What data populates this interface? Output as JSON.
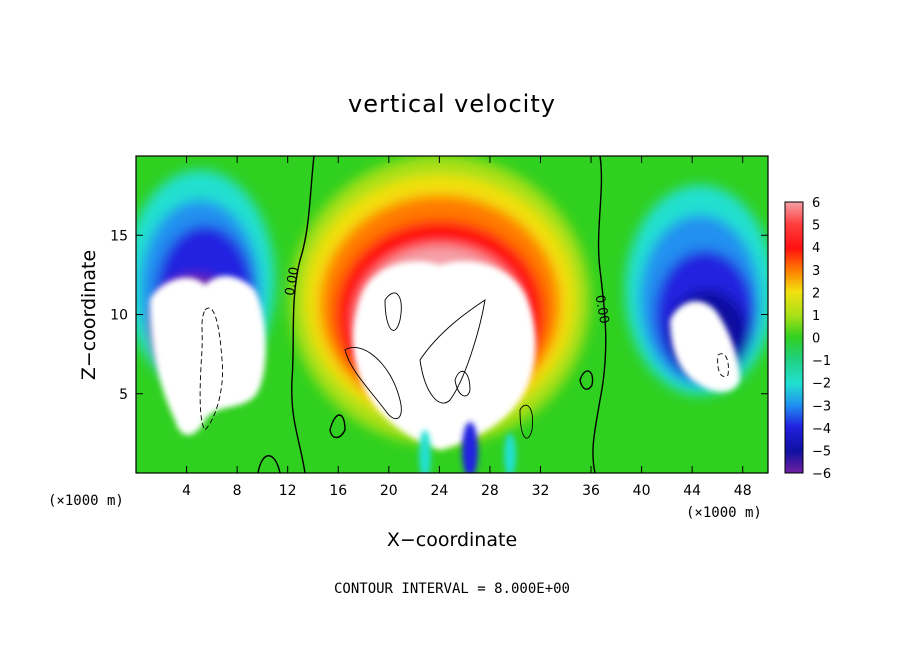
{
  "chart_data": {
    "type": "heatmap",
    "title": "vertical velocity",
    "xlabel": "X−coordinate",
    "ylabel": "Z−coordinate",
    "x_unit_label": "(×1000 m)",
    "x_unit_label_right": "(×1000 m)",
    "xlim": [
      0,
      50
    ],
    "ylim": [
      0,
      20
    ],
    "x_ticks": [
      4,
      8,
      12,
      16,
      20,
      24,
      28,
      32,
      36,
      40,
      44,
      48
    ],
    "x_tick_labels": [
      "4",
      "8",
      "12",
      "16",
      "20",
      "24",
      "28",
      "32",
      "36",
      "40",
      "44",
      "48"
    ],
    "y_ticks": [
      5,
      10,
      15
    ],
    "y_tick_labels": [
      "5",
      "10",
      "15"
    ],
    "colorbar": {
      "range": [
        -6,
        6
      ],
      "labels": [
        "6",
        "5",
        "4",
        "3",
        "2",
        "1",
        "0",
        "−1",
        "−2",
        "−3",
        "−4",
        "−5",
        "−6"
      ],
      "colors": [
        "#f4a0a8",
        "#ff3030",
        "#ff1010",
        "#ff7a00",
        "#f2e010",
        "#a8e018",
        "#30d020",
        "#20d080",
        "#20e0d0",
        "#2090f0",
        "#2020e0",
        "#1010a0",
        "#7020a0"
      ]
    },
    "contour_labels": [
      "0.00",
      "0.00"
    ],
    "contour_interval": "CONTOUR INTERVAL = 8.000E+00",
    "features": [
      {
        "kind": "updraft",
        "x": 25,
        "z": 11,
        "value": 6
      },
      {
        "kind": "downdraft",
        "x": 5,
        "z": 8,
        "value": -6
      },
      {
        "kind": "downdraft",
        "x": 45,
        "z": 9,
        "value": -6
      }
    ]
  }
}
